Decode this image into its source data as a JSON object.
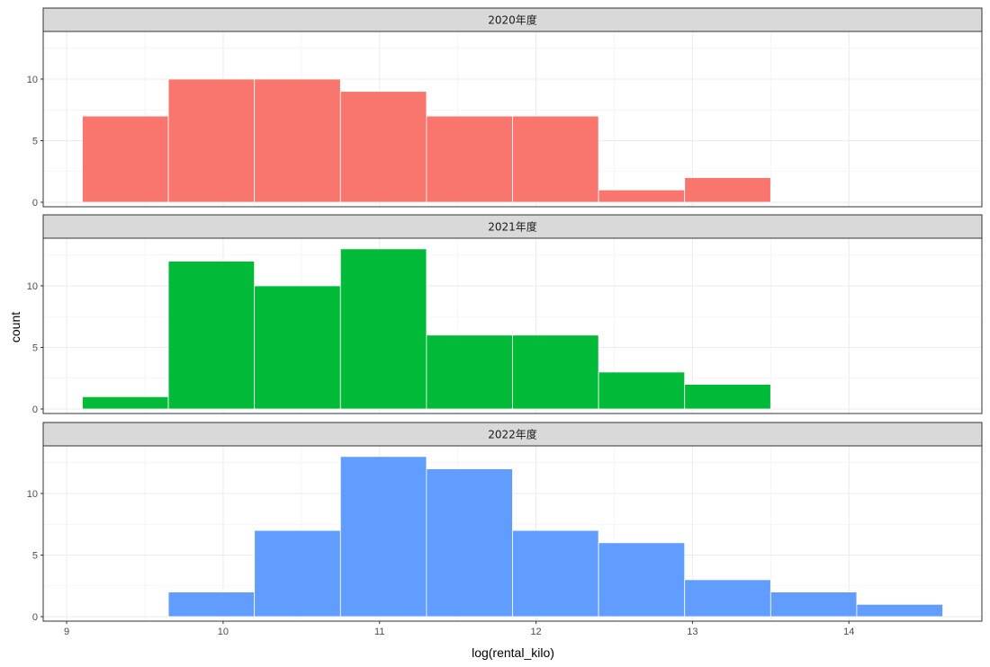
{
  "chart_data": {
    "type": "bar",
    "subtype": "histogram-facets",
    "xlabel": "log(rental_kilo)",
    "ylabel": "count",
    "x_ticks": [
      "9",
      "10",
      "11",
      "12",
      "13",
      "14"
    ],
    "y_ticks": [
      "0",
      "5",
      "10"
    ],
    "xlim": [
      8.85,
      14.85
    ],
    "ylim": [
      0,
      13.5
    ],
    "bin_edges": [
      9.1,
      9.65,
      10.2,
      10.75,
      11.3,
      11.85,
      12.4,
      12.95,
      13.5,
      14.05,
      14.6
    ],
    "grid": true,
    "facets": [
      {
        "label": "2020年度",
        "color": "#F8766D",
        "counts": [
          7,
          10,
          10,
          9,
          7,
          7,
          1,
          2,
          0,
          0
        ]
      },
      {
        "label": "2021年度",
        "color": "#00BA38",
        "counts": [
          1,
          12,
          10,
          13,
          6,
          6,
          3,
          2,
          0,
          0
        ]
      },
      {
        "label": "2022年度",
        "color": "#619CFF",
        "counts": [
          0,
          2,
          7,
          13,
          12,
          7,
          6,
          3,
          2,
          1
        ]
      }
    ]
  }
}
